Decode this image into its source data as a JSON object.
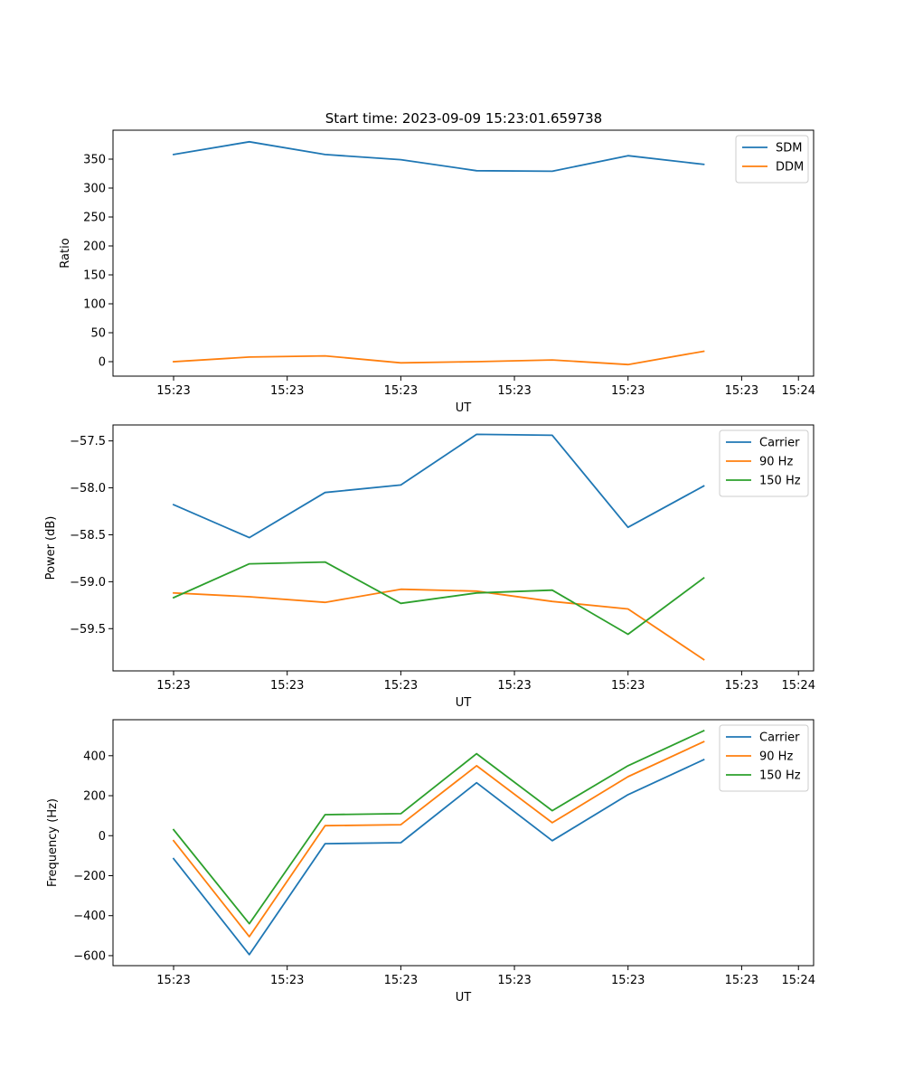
{
  "figure_title": "Start time: 2023-09-09 15:23:01.659738",
  "chart_data": [
    {
      "type": "line",
      "title": "Start time: 2023-09-09 15:23:01.659738",
      "xlabel": "UT",
      "ylabel": "Ratio",
      "x_tick_labels": [
        "15:23",
        "15:23",
        "15:23",
        "15:23",
        "15:23",
        "15:23",
        "15:24"
      ],
      "x": [
        1,
        2,
        3,
        4,
        5,
        6,
        7,
        8
      ],
      "xlim": [
        0.2,
        9.45
      ],
      "ylim": [
        -25,
        400
      ],
      "y_ticks": [
        0,
        50,
        100,
        150,
        200,
        250,
        300,
        350
      ],
      "y_tick_labels": [
        "0",
        "50",
        "100",
        "150",
        "200",
        "250",
        "300",
        "350"
      ],
      "legend_position": "top-right",
      "series": [
        {
          "name": "SDM",
          "color": "#1f77b4",
          "values": [
            358,
            380,
            358,
            349,
            330,
            329,
            356,
            341
          ]
        },
        {
          "name": "DDM",
          "color": "#ff7f0e",
          "values": [
            0,
            8,
            10,
            -2,
            0,
            3,
            -5,
            18
          ]
        }
      ]
    },
    {
      "type": "line",
      "title": "",
      "xlabel": "UT",
      "ylabel": "Power (dB)",
      "x_tick_labels": [
        "15:23",
        "15:23",
        "15:23",
        "15:23",
        "15:23",
        "15:23",
        "15:24"
      ],
      "x": [
        1,
        2,
        3,
        4,
        5,
        6,
        7,
        8
      ],
      "xlim": [
        0.2,
        9.45
      ],
      "ylim": [
        -59.95,
        -57.33
      ],
      "y_ticks": [
        -59.5,
        -59.0,
        -58.5,
        -58.0,
        -57.5
      ],
      "y_tick_labels": [
        "−59.5",
        "−59.0",
        "−58.5",
        "−58.0",
        "−57.5"
      ],
      "legend_position": "top-right",
      "series": [
        {
          "name": "Carrier",
          "color": "#1f77b4",
          "values": [
            -58.18,
            -58.53,
            -58.05,
            -57.97,
            -57.43,
            -57.44,
            -58.42,
            -57.98
          ]
        },
        {
          "name": "90 Hz",
          "color": "#ff7f0e",
          "values": [
            -59.12,
            -59.16,
            -59.22,
            -59.08,
            -59.1,
            -59.21,
            -59.29,
            -59.83
          ]
        },
        {
          "name": "150 Hz",
          "color": "#2ca02c",
          "values": [
            -59.17,
            -58.81,
            -58.79,
            -59.23,
            -59.12,
            -59.09,
            -59.56,
            -58.96
          ]
        }
      ]
    },
    {
      "type": "line",
      "title": "",
      "xlabel": "UT",
      "ylabel": "Frequency (Hz)",
      "x_tick_labels": [
        "15:23",
        "15:23",
        "15:23",
        "15:23",
        "15:23",
        "15:23",
        "15:24"
      ],
      "x": [
        1,
        2,
        3,
        4,
        5,
        6,
        7,
        8
      ],
      "xlim": [
        0.2,
        9.45
      ],
      "ylim": [
        -650,
        580
      ],
      "y_ticks": [
        -600,
        -400,
        -200,
        0,
        200,
        400
      ],
      "y_tick_labels": [
        "−600",
        "−400",
        "−200",
        "0",
        "200",
        "400"
      ],
      "legend_position": "top-right",
      "series": [
        {
          "name": "Carrier",
          "color": "#1f77b4",
          "values": [
            -115,
            -595,
            -40,
            -35,
            265,
            -25,
            205,
            380
          ]
        },
        {
          "name": "90 Hz",
          "color": "#ff7f0e",
          "values": [
            -25,
            -505,
            50,
            55,
            350,
            65,
            295,
            470
          ]
        },
        {
          "name": "150 Hz",
          "color": "#2ca02c",
          "values": [
            30,
            -440,
            105,
            110,
            410,
            125,
            350,
            525
          ]
        }
      ]
    }
  ]
}
